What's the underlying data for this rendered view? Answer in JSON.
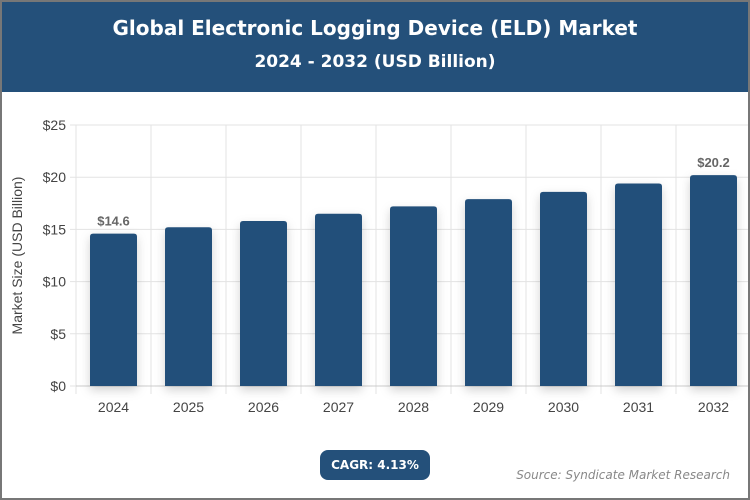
{
  "header": {
    "title": "Global Electronic Logging Device (ELD) Market",
    "subtitle": "2024 - 2032 (USD Billion)"
  },
  "chart_data": {
    "type": "bar",
    "categories": [
      "2024",
      "2025",
      "2026",
      "2027",
      "2028",
      "2029",
      "2030",
      "2031",
      "2032"
    ],
    "values": [
      14.6,
      15.2,
      15.8,
      16.5,
      17.2,
      17.9,
      18.6,
      19.4,
      20.2
    ],
    "data_labels": [
      {
        "index": 0,
        "text": "$14.6"
      },
      {
        "index": 8,
        "text": "$20.2"
      }
    ],
    "ylabel": "Market Size (USD Billion)",
    "xlabel": "",
    "ylim": [
      0,
      25
    ],
    "yticks": [
      0,
      5,
      10,
      15,
      20,
      25
    ],
    "ytick_labels": [
      "$0",
      "$5",
      "$10",
      "$15",
      "$20",
      "$25"
    ],
    "grid": true,
    "bar_color": "#24507a"
  },
  "footer": {
    "cagr": "CAGR: 4.13%",
    "source": "Source: Syndicate Market Research"
  }
}
